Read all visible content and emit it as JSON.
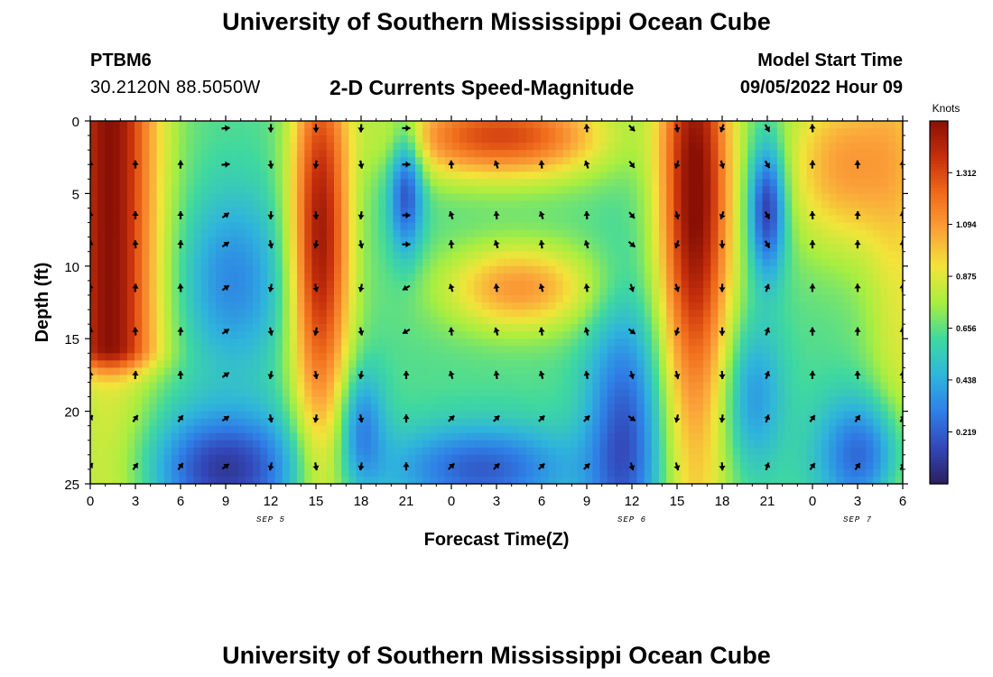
{
  "header": {
    "title": "University of Southern Mississippi Ocean Cube",
    "station_id": "PTBM6",
    "coordinates": "30.2120N  88.5050W",
    "subtitle": "2-D Currents Speed-Magnitude",
    "model_start_label": "Model Start Time",
    "model_start_value": "09/05/2022 Hour 09"
  },
  "footer": {
    "title": "University of Southern Mississippi Ocean Cube"
  },
  "chart_data": {
    "type": "heatmap",
    "title": "2-D Currents Speed-Magnitude",
    "xlabel": "Forecast Time(Z)",
    "ylabel": "Depth (ft)",
    "x_ticks": [
      "0",
      "3",
      "6",
      "9",
      "12",
      "15",
      "18",
      "21",
      "0",
      "3",
      "6",
      "9",
      "12",
      "15",
      "18",
      "21",
      "0",
      "3",
      "6"
    ],
    "x_range_hours": [
      0,
      54
    ],
    "date_labels": [
      {
        "text": "SEP 5",
        "hour": 12
      },
      {
        "text": "SEP 6",
        "hour": 36
      },
      {
        "text": "SEP 7",
        "hour": 51
      }
    ],
    "y_ticks": [
      0,
      5,
      10,
      15,
      20,
      25
    ],
    "ylim": [
      0,
      25
    ],
    "colorbar": {
      "label": "Knots",
      "min": 0,
      "max": 1.53,
      "ticks": [
        0.219,
        0.438,
        0.656,
        0.875,
        1.094,
        1.312
      ],
      "colors": [
        "#2a1f5a",
        "#3346b8",
        "#2f7fe6",
        "#2fb4dc",
        "#3fd8a0",
        "#a8ee40",
        "#f2e43a",
        "#fba23a",
        "#f06c1c",
        "#c7300c",
        "#8a1005"
      ]
    },
    "quiver": {
      "hours": [
        0,
        3,
        6,
        9,
        12,
        15,
        18,
        21,
        24,
        27,
        30,
        33,
        36,
        39,
        42,
        45,
        48,
        51,
        54
      ],
      "depths": [
        3,
        6.5,
        8.5,
        11.5,
        14.5,
        17.5,
        20.5,
        23.8
      ],
      "top_row_depth": 0.5,
      "top_row_hours": [
        9,
        12,
        15,
        18,
        21,
        33,
        36,
        39,
        42,
        45,
        48
      ]
    }
  }
}
